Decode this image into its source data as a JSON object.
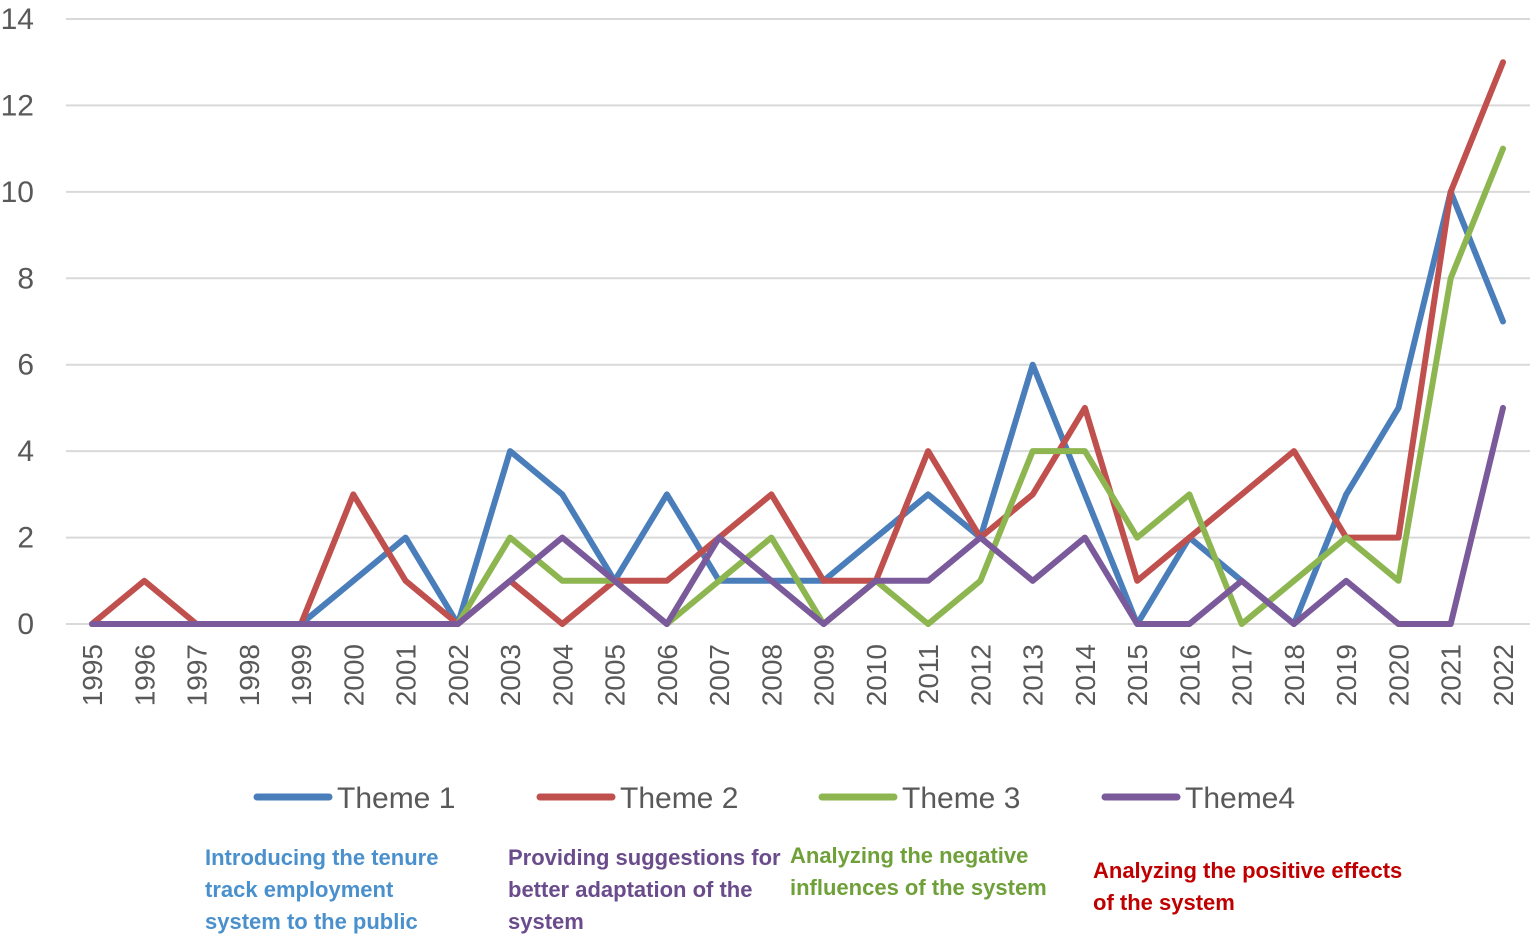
{
  "chart_data": {
    "type": "line",
    "title": "",
    "xlabel": "",
    "ylabel": "",
    "ylim": [
      0,
      14
    ],
    "yticks": [
      0,
      2,
      4,
      6,
      8,
      10,
      12,
      14
    ],
    "grid": true,
    "legend_position": "bottom",
    "categories": [
      "1995",
      "1996",
      "1997",
      "1998",
      "1999",
      "2000",
      "2001",
      "2002",
      "2003",
      "2004",
      "2005",
      "2006",
      "2007",
      "2008",
      "2009",
      "2010",
      "2011",
      "2012",
      "2013",
      "2014",
      "2015",
      "2016",
      "2017",
      "2018",
      "2019",
      "2020",
      "2021",
      "2022"
    ],
    "series": [
      {
        "name": "Theme 1",
        "color": "#4A7EBB",
        "values": [
          0,
          0,
          0,
          0,
          0,
          1,
          2,
          0,
          4,
          3,
          1,
          3,
          1,
          1,
          1,
          2,
          3,
          2,
          6,
          3,
          0,
          2,
          1,
          0,
          3,
          5,
          10,
          7
        ]
      },
      {
        "name": "Theme 2",
        "color": "#C0504D",
        "values": [
          0,
          1,
          0,
          0,
          0,
          3,
          1,
          0,
          1,
          0,
          1,
          1,
          2,
          3,
          1,
          1,
          4,
          2,
          3,
          5,
          1,
          2,
          3,
          4,
          2,
          2,
          10,
          13
        ]
      },
      {
        "name": "Theme 3",
        "color": "#8DB651",
        "values": [
          0,
          0,
          0,
          0,
          0,
          0,
          0,
          0,
          2,
          1,
          1,
          0,
          1,
          2,
          0,
          1,
          0,
          1,
          4,
          4,
          2,
          3,
          0,
          1,
          2,
          1,
          8,
          11
        ]
      },
      {
        "name": "Theme4",
        "color": "#7A5A9A",
        "values": [
          0,
          0,
          0,
          0,
          0,
          0,
          0,
          0,
          1,
          2,
          1,
          0,
          2,
          1,
          0,
          1,
          1,
          2,
          1,
          2,
          0,
          0,
          1,
          0,
          1,
          0,
          0,
          5
        ]
      }
    ]
  },
  "notes": [
    {
      "id": "theme1",
      "color": "#4A90CD",
      "text": "Introducing  the tenure\ntrack employment\nsystem to the public"
    },
    {
      "id": "theme4",
      "color": "#6A4C8C",
      "text": "Providing suggestions for\nbetter adaptation of the\nsystem"
    },
    {
      "id": "theme3",
      "color": "#6FA03A",
      "text": "Analyzing the negative\ninfluences of the system"
    },
    {
      "id": "theme2",
      "color": "#C00000",
      "text": "Analyzing the positive effects\nof the system"
    }
  ]
}
